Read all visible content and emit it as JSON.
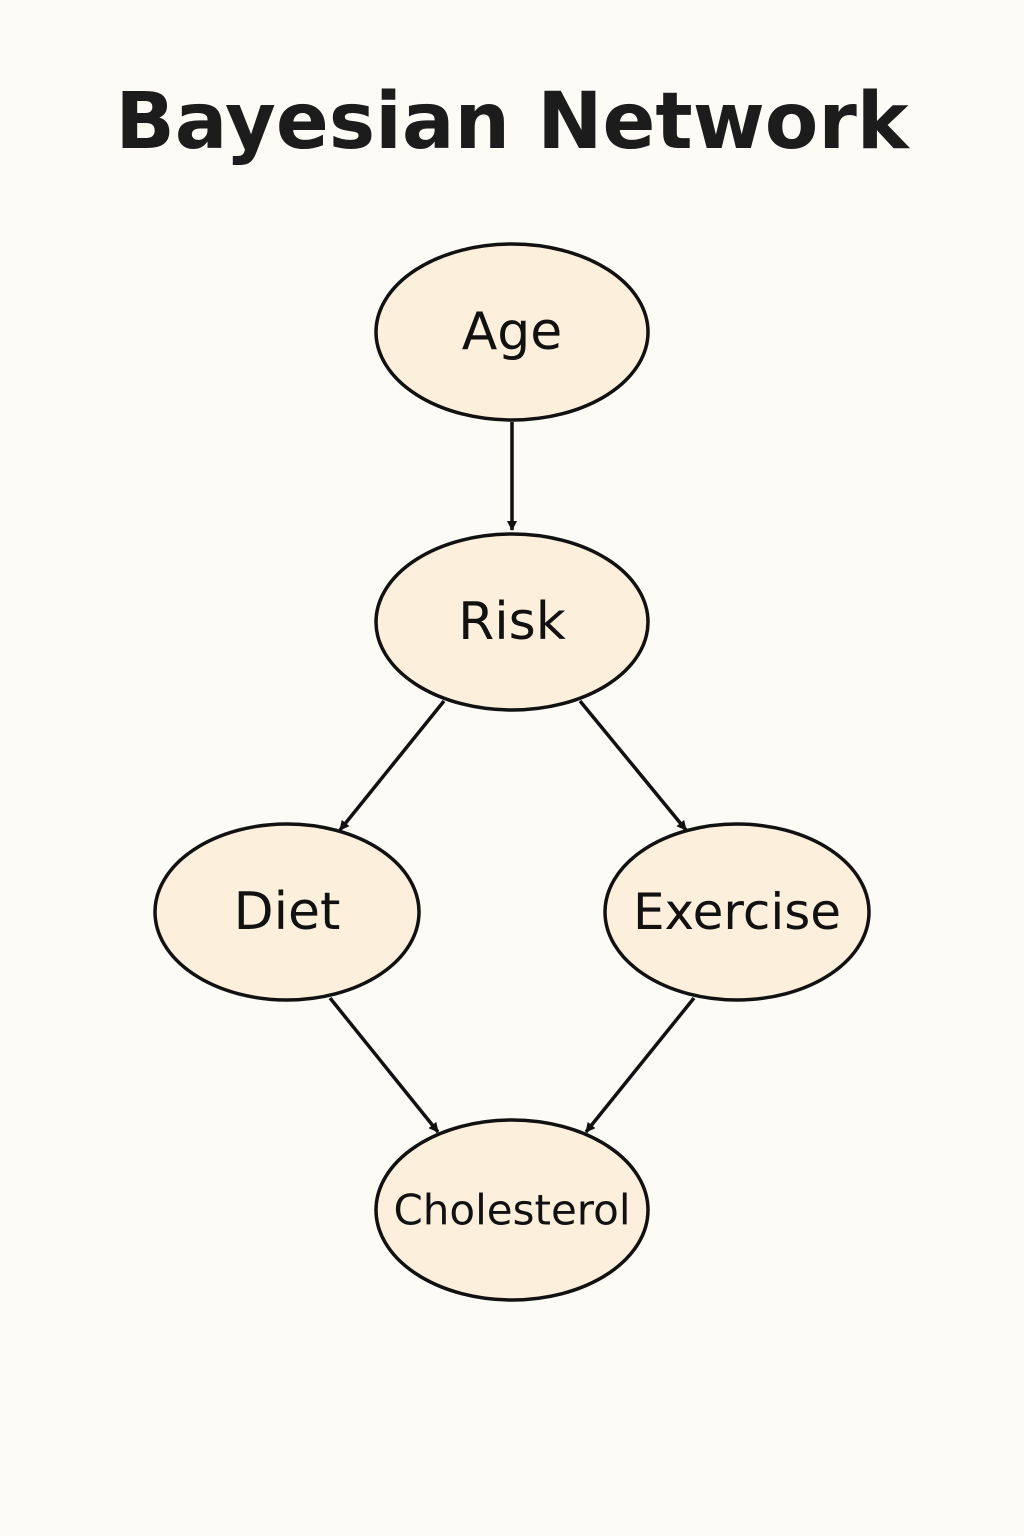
{
  "title": "Bayesian Network",
  "colors": {
    "background": "#fdfbf6",
    "node_fill": "#fcefdc",
    "stroke": "#111111"
  },
  "nodes": [
    {
      "id": "age",
      "label": "Age"
    },
    {
      "id": "risk",
      "label": "Risk"
    },
    {
      "id": "diet",
      "label": "Diet"
    },
    {
      "id": "exercise",
      "label": "Exercise"
    },
    {
      "id": "cholesterol",
      "label": "Cholesterol"
    }
  ],
  "edges": [
    {
      "from": "age",
      "to": "risk"
    },
    {
      "from": "risk",
      "to": "diet"
    },
    {
      "from": "risk",
      "to": "exercise"
    },
    {
      "from": "diet",
      "to": "cholesterol"
    },
    {
      "from": "exercise",
      "to": "cholesterol"
    }
  ]
}
